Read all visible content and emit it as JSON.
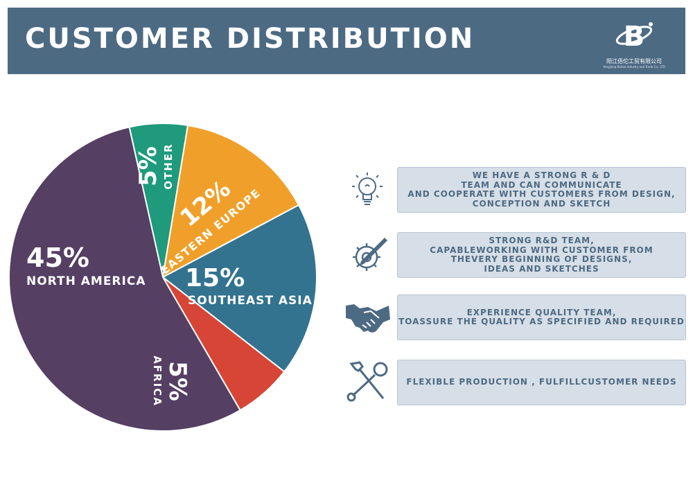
{
  "header": {
    "title": "CUSTOMER DISTRIBUTION",
    "logo_glyph": "B",
    "logo_company": "阳江佰佗工贸有限公司",
    "logo_company_en": "Yangjiang Baituo Industry and Trade Co., LTD",
    "background": "#4d6a83"
  },
  "chart_data": {
    "type": "pie",
    "title": "",
    "slices": [
      {
        "label": "OTHER",
        "value": 5,
        "value_label": "5%",
        "color": "#1f9a7c"
      },
      {
        "label": "EASTERN EUROPE",
        "value": 12,
        "value_label": "12%",
        "color": "#f0a02a"
      },
      {
        "label": "SOUTHEAST ASIA",
        "value": 15,
        "value_label": "15%",
        "color": "#33738f"
      },
      {
        "label": "AFRICA",
        "value": 5,
        "value_label": "5%",
        "color": "#d64535"
      },
      {
        "label": "NORTH AMERICA",
        "value": 45,
        "value_label": "45%",
        "color": "#553f63"
      }
    ]
  },
  "features": [
    {
      "icon": "lightbulb-icon",
      "text": "WE HAVE A STRONG R & D\nTEAM AND CAN COMMUNICATE\nAND COOPERATE WITH CUSTOMERS FROM DESIGN,\nCONCEPTION AND SKETCH"
    },
    {
      "icon": "gear-pencil-icon",
      "text": "STRONG R&D TEAM,\nCAPABLEWORKING WITH CUSTOMER FROM\nTHEVERY BEGINNING OF DESIGNS,\nIDEAS AND SKETCHES"
    },
    {
      "icon": "handshake-icon",
      "text": "EXPERIENCE QUALITY TEAM,\nTOASSURE THE QUALITY AS SPECIFIED AND REQUIRED"
    },
    {
      "icon": "tools-icon",
      "text": "FLEXIBLE PRODUCTION , FULFILLCUSTOMER NEEDS"
    }
  ]
}
